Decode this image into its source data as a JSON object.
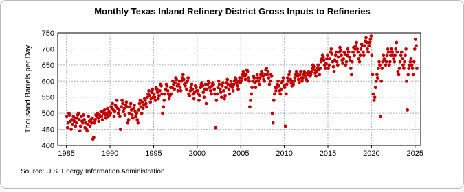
{
  "chart_data": {
    "type": "scatter",
    "title": "Monthly Texas Inland Refinery District Gross Inputs to Refineries",
    "y_label": "Thousand Barrels per Day",
    "source": "Source: U.S. Energy Information Administration",
    "xlim": [
      1984,
      2025.65
    ],
    "ylim": [
      400,
      750
    ],
    "xticks": [
      1985,
      1990,
      1995,
      2000,
      2005,
      2010,
      2015,
      2020,
      2025
    ],
    "yticks": [
      400,
      450,
      500,
      550,
      600,
      650,
      700,
      750
    ],
    "grid": true,
    "series": [
      {
        "color": "#c00000",
        "x": [
          1985.04,
          1985.13,
          1985.21,
          1985.29,
          1985.38,
          1985.46,
          1985.54,
          1985.63,
          1985.71,
          1985.79,
          1985.88,
          1985.96,
          1986.04,
          1986.13,
          1986.21,
          1986.29,
          1986.38,
          1986.46,
          1986.54,
          1986.63,
          1986.71,
          1986.79,
          1986.88,
          1986.96,
          1987.04,
          1987.13,
          1987.21,
          1987.29,
          1987.38,
          1987.46,
          1987.54,
          1987.63,
          1987.71,
          1987.79,
          1987.88,
          1987.96,
          1988.04,
          1988.13,
          1988.21,
          1988.29,
          1988.38,
          1988.46,
          1988.54,
          1988.63,
          1988.71,
          1988.79,
          1988.88,
          1988.96,
          1989.04,
          1989.13,
          1989.21,
          1989.29,
          1989.38,
          1989.46,
          1989.54,
          1989.63,
          1989.71,
          1989.79,
          1989.88,
          1989.96,
          1990.04,
          1990.13,
          1990.21,
          1990.29,
          1990.38,
          1990.46,
          1990.54,
          1990.63,
          1990.71,
          1990.79,
          1990.88,
          1990.96,
          1991.04,
          1991.13,
          1991.21,
          1991.29,
          1991.38,
          1991.46,
          1991.54,
          1991.63,
          1991.71,
          1991.79,
          1991.88,
          1991.96,
          1992.04,
          1992.13,
          1992.21,
          1992.29,
          1992.38,
          1992.46,
          1992.54,
          1992.63,
          1992.71,
          1992.79,
          1992.88,
          1992.96,
          1993.04,
          1993.13,
          1993.21,
          1993.29,
          1993.38,
          1993.46,
          1993.54,
          1993.63,
          1993.71,
          1993.79,
          1993.88,
          1993.96,
          1994.04,
          1994.13,
          1994.21,
          1994.29,
          1994.38,
          1994.46,
          1994.54,
          1994.63,
          1994.71,
          1994.79,
          1994.88,
          1994.96,
          1995.04,
          1995.13,
          1995.21,
          1995.29,
          1995.38,
          1995.46,
          1995.54,
          1995.63,
          1995.71,
          1995.79,
          1995.88,
          1995.96,
          1996.04,
          1996.13,
          1996.21,
          1996.29,
          1996.38,
          1996.46,
          1996.54,
          1996.63,
          1996.71,
          1996.79,
          1996.88,
          1996.96,
          1997.04,
          1997.13,
          1997.21,
          1997.29,
          1997.38,
          1997.46,
          1997.54,
          1997.63,
          1997.71,
          1997.79,
          1997.88,
          1997.96,
          1998.04,
          1998.13,
          1998.21,
          1998.29,
          1998.38,
          1998.46,
          1998.54,
          1998.63,
          1998.71,
          1998.79,
          1998.88,
          1998.96,
          1999.04,
          1999.13,
          1999.21,
          1999.29,
          1999.38,
          1999.46,
          1999.54,
          1999.63,
          1999.71,
          1999.79,
          1999.88,
          1999.96,
          2000.04,
          2000.13,
          2000.21,
          2000.29,
          2000.38,
          2000.46,
          2000.54,
          2000.63,
          2000.71,
          2000.79,
          2000.88,
          2000.96,
          2001.04,
          2001.13,
          2001.21,
          2001.29,
          2001.38,
          2001.46,
          2001.54,
          2001.63,
          2001.71,
          2001.79,
          2001.88,
          2001.96,
          2002.04,
          2002.13,
          2002.21,
          2002.29,
          2002.38,
          2002.46,
          2002.54,
          2002.63,
          2002.71,
          2002.79,
          2002.88,
          2002.96,
          2003.04,
          2003.13,
          2003.21,
          2003.29,
          2003.38,
          2003.46,
          2003.54,
          2003.63,
          2003.71,
          2003.79,
          2003.88,
          2003.96,
          2004.04,
          2004.13,
          2004.21,
          2004.29,
          2004.38,
          2004.46,
          2004.54,
          2004.63,
          2004.71,
          2004.79,
          2004.88,
          2004.96,
          2005.04,
          2005.13,
          2005.21,
          2005.29,
          2005.38,
          2005.46,
          2005.54,
          2005.63,
          2005.71,
          2005.79,
          2005.88,
          2005.96,
          2006.04,
          2006.13,
          2006.21,
          2006.29,
          2006.38,
          2006.46,
          2006.54,
          2006.63,
          2006.71,
          2006.79,
          2006.88,
          2006.96,
          2007.04,
          2007.13,
          2007.21,
          2007.29,
          2007.38,
          2007.46,
          2007.54,
          2007.63,
          2007.71,
          2007.79,
          2007.88,
          2007.96,
          2008.04,
          2008.13,
          2008.21,
          2008.29,
          2008.38,
          2008.46,
          2008.54,
          2008.63,
          2008.71,
          2008.79,
          2008.88,
          2008.96,
          2009.04,
          2009.13,
          2009.21,
          2009.29,
          2009.38,
          2009.46,
          2009.54,
          2009.63,
          2009.71,
          2009.79,
          2009.88,
          2009.96,
          2010.04,
          2010.13,
          2010.21,
          2010.29,
          2010.38,
          2010.46,
          2010.54,
          2010.63,
          2010.71,
          2010.79,
          2010.88,
          2010.96,
          2011.04,
          2011.13,
          2011.21,
          2011.29,
          2011.38,
          2011.46,
          2011.54,
          2011.63,
          2011.71,
          2011.79,
          2011.88,
          2011.96,
          2012.04,
          2012.13,
          2012.21,
          2012.29,
          2012.38,
          2012.46,
          2012.54,
          2012.63,
          2012.71,
          2012.79,
          2012.88,
          2012.96,
          2013.04,
          2013.13,
          2013.21,
          2013.29,
          2013.38,
          2013.46,
          2013.54,
          2013.63,
          2013.71,
          2013.79,
          2013.88,
          2013.96,
          2014.04,
          2014.13,
          2014.21,
          2014.29,
          2014.38,
          2014.46,
          2014.54,
          2014.63,
          2014.71,
          2014.79,
          2014.88,
          2014.96,
          2015.04,
          2015.13,
          2015.21,
          2015.29,
          2015.38,
          2015.46,
          2015.54,
          2015.63,
          2015.71,
          2015.79,
          2015.88,
          2015.96,
          2016.04,
          2016.13,
          2016.21,
          2016.29,
          2016.38,
          2016.46,
          2016.54,
          2016.63,
          2016.71,
          2016.79,
          2016.88,
          2016.96,
          2017.04,
          2017.13,
          2017.21,
          2017.29,
          2017.38,
          2017.46,
          2017.54,
          2017.63,
          2017.71,
          2017.79,
          2017.88,
          2017.96,
          2018.04,
          2018.13,
          2018.21,
          2018.29,
          2018.38,
          2018.46,
          2018.54,
          2018.63,
          2018.71,
          2018.79,
          2018.88,
          2018.96,
          2019.04,
          2019.13,
          2019.21,
          2019.29,
          2019.38,
          2019.46,
          2019.54,
          2019.63,
          2019.71,
          2019.79,
          2019.88,
          2019.96,
          2020.04,
          2020.13,
          2020.21,
          2020.29,
          2020.38,
          2020.46,
          2020.54,
          2020.63,
          2020.71,
          2020.79,
          2020.88,
          2020.96,
          2021.04,
          2021.13,
          2021.21,
          2021.29,
          2021.38,
          2021.46,
          2021.54,
          2021.63,
          2021.71,
          2021.79,
          2021.88,
          2021.96,
          2022.04,
          2022.13,
          2022.21,
          2022.29,
          2022.38,
          2022.46,
          2022.54,
          2022.63,
          2022.71,
          2022.79,
          2022.88,
          2022.96,
          2023.04,
          2023.13,
          2023.21,
          2023.29,
          2023.38,
          2023.46,
          2023.54,
          2023.63,
          2023.71,
          2023.79,
          2023.88,
          2023.96,
          2024.04,
          2024.13,
          2024.21,
          2024.29,
          2024.38,
          2024.46,
          2024.54,
          2024.63,
          2024.71,
          2024.79,
          2024.88,
          2024.96,
          2025.04,
          2025.13,
          2025.21
        ],
        "values": [
          490,
          455,
          470,
          500,
          495,
          475,
          450,
          480,
          465,
          490,
          475,
          485,
          460,
          470,
          485,
          495,
          500,
          480,
          445,
          460,
          490,
          475,
          470,
          495,
          480,
          455,
          470,
          450,
          445,
          465,
          490,
          475,
          460,
          480,
          470,
          485,
          420,
          425,
          470,
          480,
          495,
          490,
          500,
          485,
          475,
          495,
          490,
          505,
          490,
          480,
          505,
          500,
          510,
          495,
          485,
          500,
          515,
          490,
          505,
          495,
          500,
          520,
          515,
          530,
          510,
          490,
          505,
          525,
          520,
          540,
          515,
          500,
          510,
          490,
          450,
          520,
          540,
          530,
          505,
          515,
          495,
          525,
          535,
          520,
          470,
          480,
          500,
          520,
          530,
          510,
          495,
          485,
          515,
          525,
          505,
          490,
          500,
          480,
          470,
          510,
          530,
          540,
          520,
          500,
          535,
          515,
          525,
          545,
          540,
          530,
          520,
          550,
          560,
          570,
          555,
          535,
          545,
          565,
          575,
          550,
          560,
          550,
          540,
          580,
          575,
          565,
          545,
          555,
          570,
          590,
          585,
          560,
          500,
          520,
          540,
          560,
          575,
          590,
          585,
          570,
          560,
          545,
          555,
          580,
          560,
          580,
          600,
          590,
          575,
          595,
          610,
          605,
          585,
          570,
          590,
          600,
          580,
          570,
          600,
          610,
          620,
          605,
          590,
          585,
          595,
          575,
          600,
          610,
          560,
          555,
          570,
          580,
          590,
          575,
          560,
          545,
          565,
          585,
          580,
          570,
          570,
          560,
          540,
          555,
          580,
          590,
          595,
          585,
          565,
          550,
          575,
          590,
          530,
          575,
          590,
          600,
          595,
          580,
          570,
          560,
          585,
          595,
          590,
          575,
          560,
          455,
          540,
          560,
          580,
          600,
          590,
          575,
          565,
          550,
          585,
          595,
          570,
          545,
          555,
          580,
          595,
          605,
          590,
          575,
          560,
          585,
          600,
          590,
          580,
          570,
          590,
          600,
          610,
          605,
          595,
          585,
          575,
          600,
          610,
          595,
          600,
          610,
          620,
          630,
          625,
          615,
          605,
          620,
          635,
          630,
          610,
          600,
          520,
          540,
          560,
          580,
          600,
          615,
          610,
          595,
          580,
          600,
          620,
          610,
          600,
          590,
          610,
          620,
          630,
          625,
          615,
          605,
          600,
          620,
          635,
          640,
          620,
          630,
          610,
          590,
          600,
          620,
          615,
          500,
          470,
          540,
          560,
          580,
          570,
          580,
          590,
          600,
          585,
          570,
          560,
          575,
          595,
          600,
          610,
          585,
          580,
          460,
          560,
          590,
          610,
          600,
          620,
          630,
          605,
          595,
          585,
          600,
          590,
          600,
          610,
          620,
          630,
          625,
          615,
          605,
          595,
          620,
          630,
          610,
          600,
          610,
          620,
          630,
          625,
          615,
          605,
          600,
          620,
          630,
          625,
          615,
          620,
          630,
          640,
          650,
          645,
          635,
          625,
          615,
          630,
          640,
          650,
          635,
          620,
          640,
          660,
          670,
          680,
          675,
          665,
          650,
          640,
          655,
          670,
          680,
          640,
          650,
          670,
          690,
          700,
          685,
          660,
          645,
          630,
          665,
          680,
          690,
          660,
          650,
          675,
          690,
          705,
          695,
          680,
          665,
          655,
          670,
          690,
          685,
          650,
          660,
          680,
          700,
          690,
          675,
          665,
          640,
          620,
          660,
          690,
          705,
          680,
          700,
          710,
          720,
          700,
          690,
          670,
          660,
          680,
          700,
          715,
          710,
          690,
          680,
          710,
          725,
          735,
          720,
          700,
          690,
          710,
          720,
          730,
          740,
          680,
          620,
          560,
          540,
          550,
          580,
          600,
          620,
          610,
          640,
          660,
          650,
          490,
          600,
          640,
          660,
          680,
          670,
          665,
          650,
          660,
          680,
          700,
          690,
          650,
          660,
          680,
          700,
          690,
          680,
          670,
          660,
          680,
          700,
          720,
          690,
          630,
          620,
          640,
          660,
          680,
          690,
          670,
          650,
          640,
          660,
          680,
          700,
          600,
          510,
          620,
          640,
          650,
          660,
          670,
          650,
          640,
          620,
          660,
          700,
          730,
          710,
          640
        ]
      }
    ]
  }
}
